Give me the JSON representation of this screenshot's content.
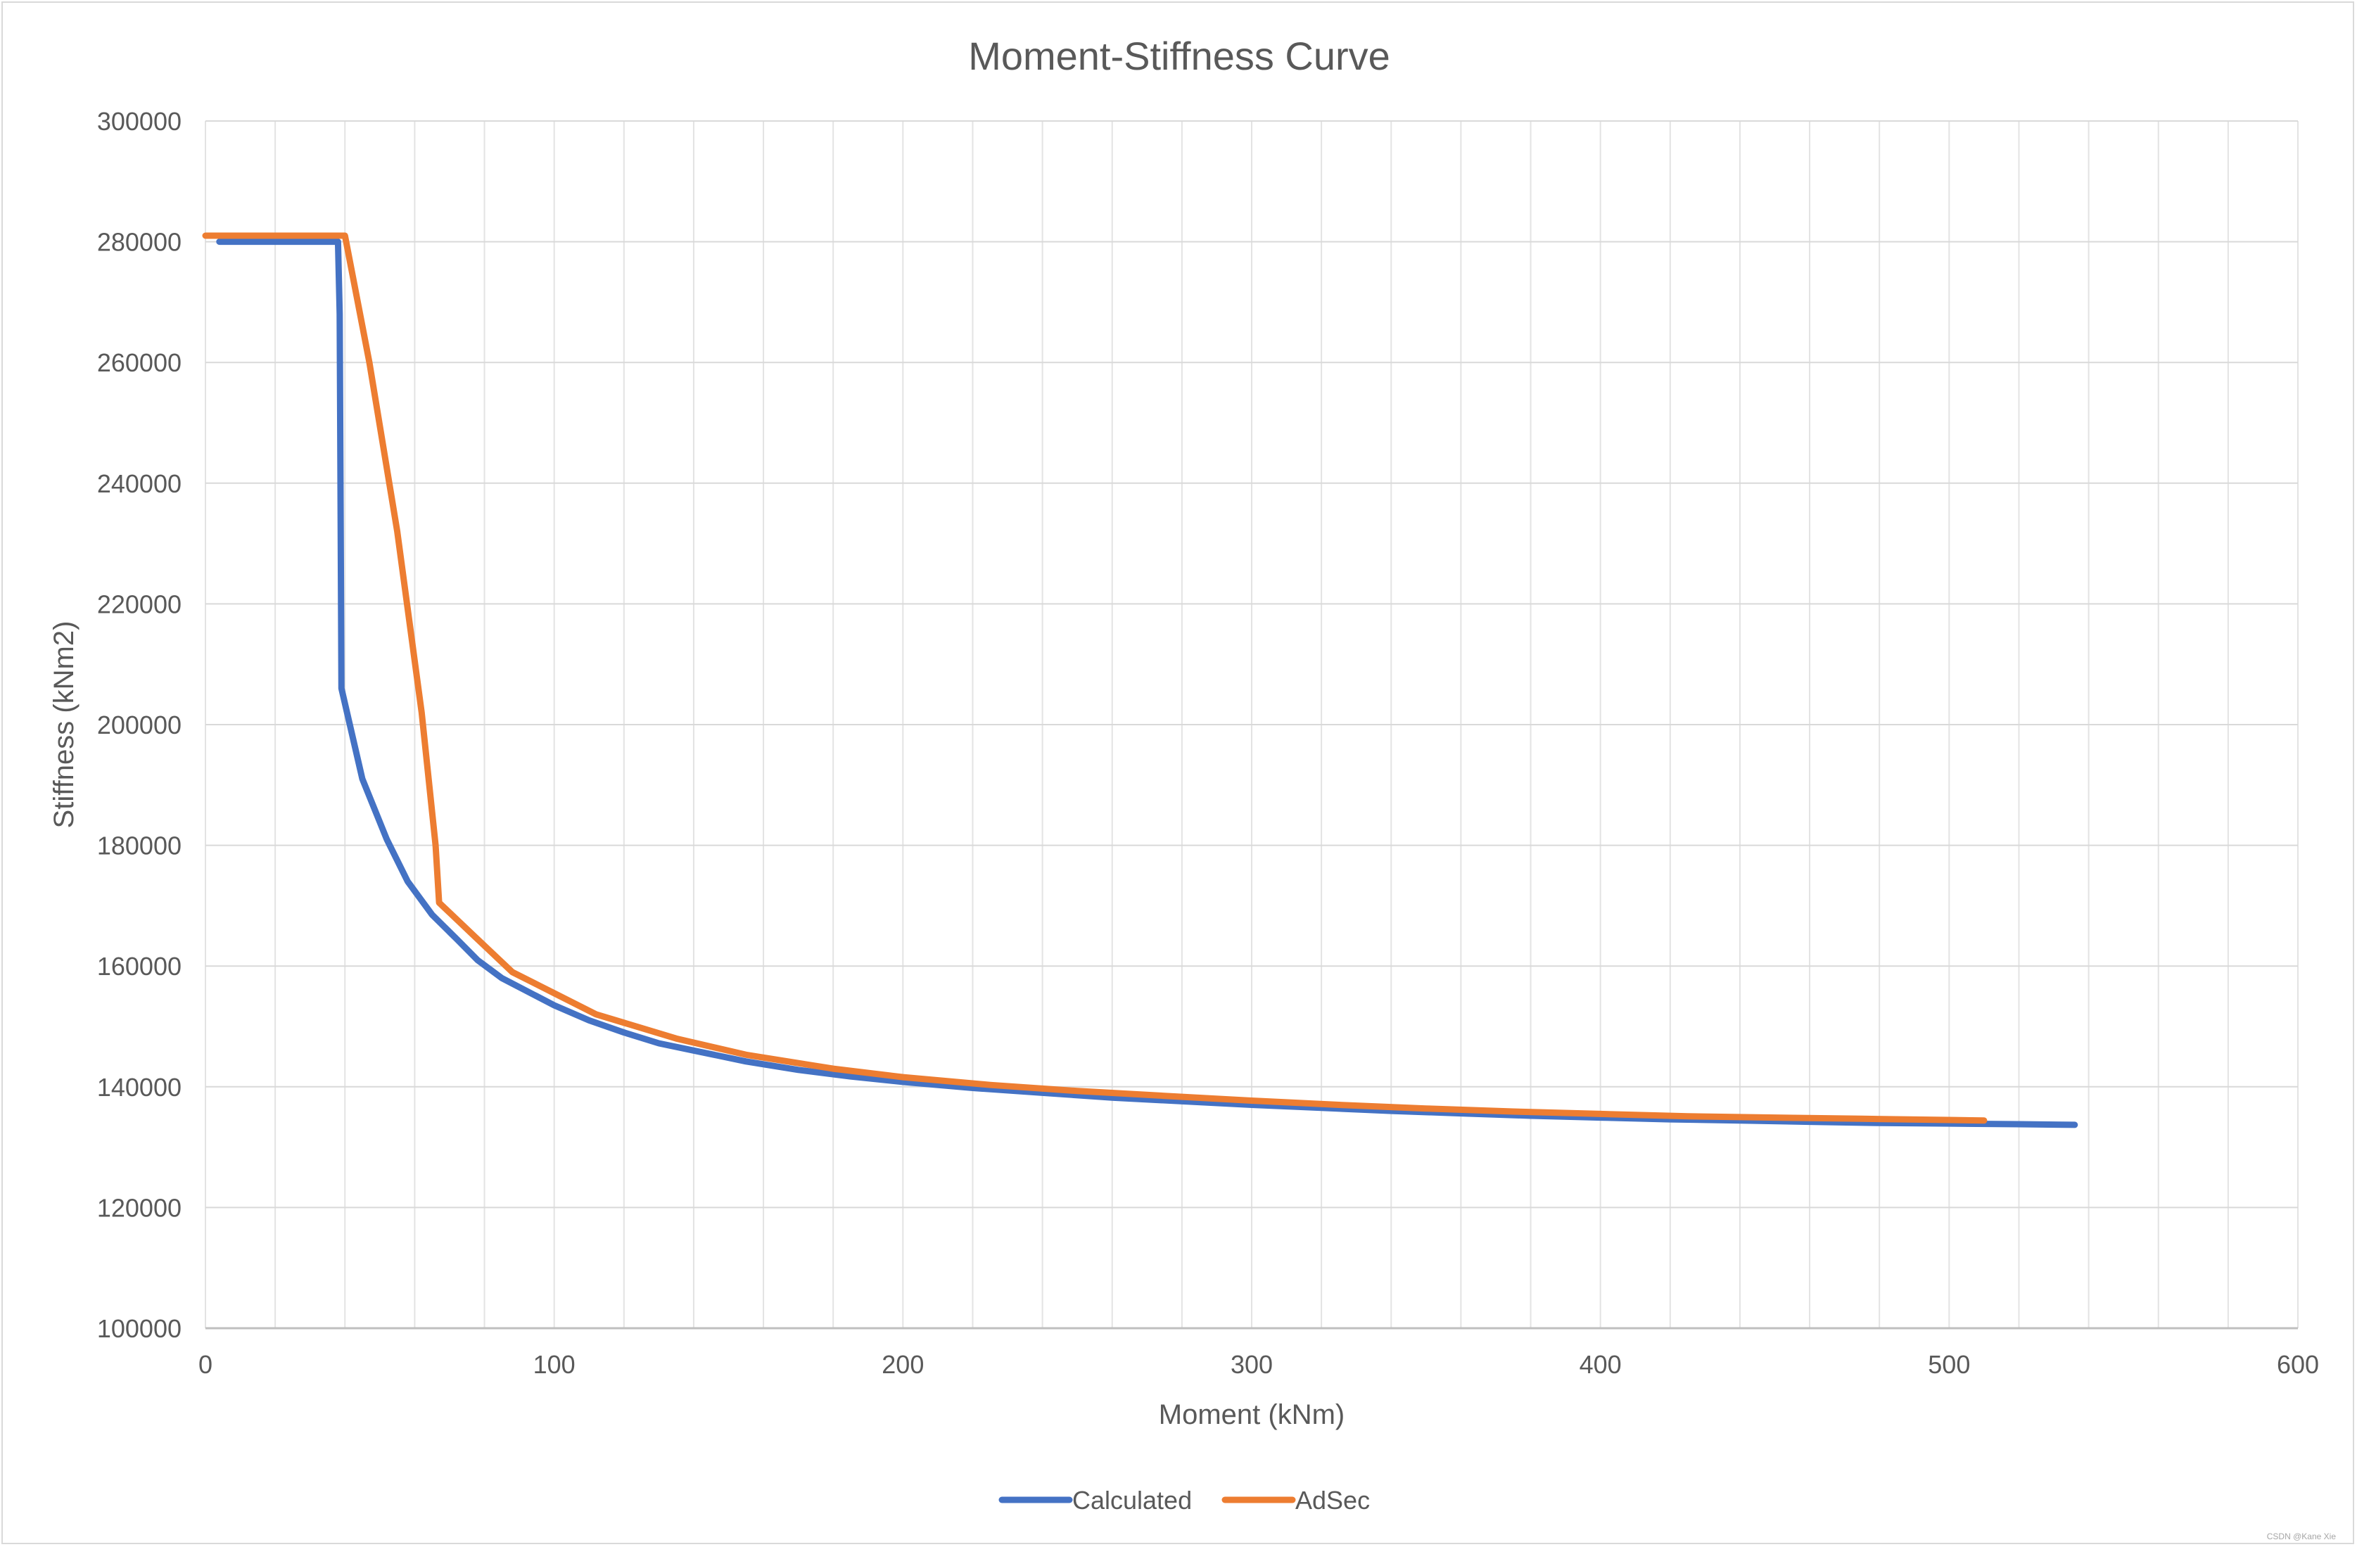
{
  "chart_data": {
    "type": "line",
    "title": "Moment-Stiffness Curve",
    "xlabel": "Moment (kNm)",
    "ylabel": "Stiffness (kNm2)",
    "xlim": [
      0,
      600
    ],
    "ylim": [
      100000,
      300000
    ],
    "x_ticks": [
      0,
      100,
      200,
      300,
      400,
      500,
      600
    ],
    "y_ticks": [
      100000,
      120000,
      140000,
      160000,
      180000,
      200000,
      220000,
      240000,
      260000,
      280000,
      300000
    ],
    "x_minor_step": 20,
    "grid": true,
    "legend_position": "bottom",
    "series": [
      {
        "name": "Calculated",
        "color": "#4472C4",
        "points": [
          [
            4,
            280000
          ],
          [
            38,
            280000
          ],
          [
            38.5,
            268000
          ],
          [
            39,
            206000
          ],
          [
            45,
            191000
          ],
          [
            52,
            181000
          ],
          [
            58,
            174000
          ],
          [
            65,
            168500
          ],
          [
            72,
            164500
          ],
          [
            78,
            161000
          ],
          [
            85,
            158000
          ],
          [
            90,
            156500
          ],
          [
            100,
            153500
          ],
          [
            110,
            151000
          ],
          [
            120,
            149000
          ],
          [
            130,
            147200
          ],
          [
            140,
            146000
          ],
          [
            155,
            144200
          ],
          [
            170,
            142800
          ],
          [
            185,
            141700
          ],
          [
            200,
            140800
          ],
          [
            220,
            139800
          ],
          [
            240,
            139000
          ],
          [
            260,
            138200
          ],
          [
            280,
            137600
          ],
          [
            300,
            137000
          ],
          [
            320,
            136500
          ],
          [
            340,
            136000
          ],
          [
            360,
            135600
          ],
          [
            380,
            135200
          ],
          [
            400,
            134900
          ],
          [
            420,
            134600
          ],
          [
            440,
            134400
          ],
          [
            460,
            134200
          ],
          [
            480,
            134000
          ],
          [
            500,
            133900
          ],
          [
            520,
            133800
          ],
          [
            536,
            133700
          ]
        ]
      },
      {
        "name": "AdSec",
        "color": "#ED7D31",
        "points": [
          [
            0,
            281000
          ],
          [
            40,
            281000
          ],
          [
            47,
            260000
          ],
          [
            55,
            232000
          ],
          [
            62,
            202000
          ],
          [
            66,
            180000
          ],
          [
            67,
            170500
          ],
          [
            77,
            165000
          ],
          [
            88,
            159000
          ],
          [
            100,
            155500
          ],
          [
            112,
            152000
          ],
          [
            135,
            148000
          ],
          [
            155,
            145300
          ],
          [
            180,
            143000
          ],
          [
            200,
            141600
          ],
          [
            225,
            140300
          ],
          [
            250,
            139300
          ],
          [
            275,
            138500
          ],
          [
            300,
            137700
          ],
          [
            325,
            137000
          ],
          [
            350,
            136400
          ],
          [
            375,
            135900
          ],
          [
            400,
            135500
          ],
          [
            425,
            135100
          ],
          [
            450,
            134900
          ],
          [
            475,
            134700
          ],
          [
            500,
            134500
          ],
          [
            510,
            134400
          ]
        ]
      }
    ]
  },
  "watermark": "CSDN @Kane Xie"
}
